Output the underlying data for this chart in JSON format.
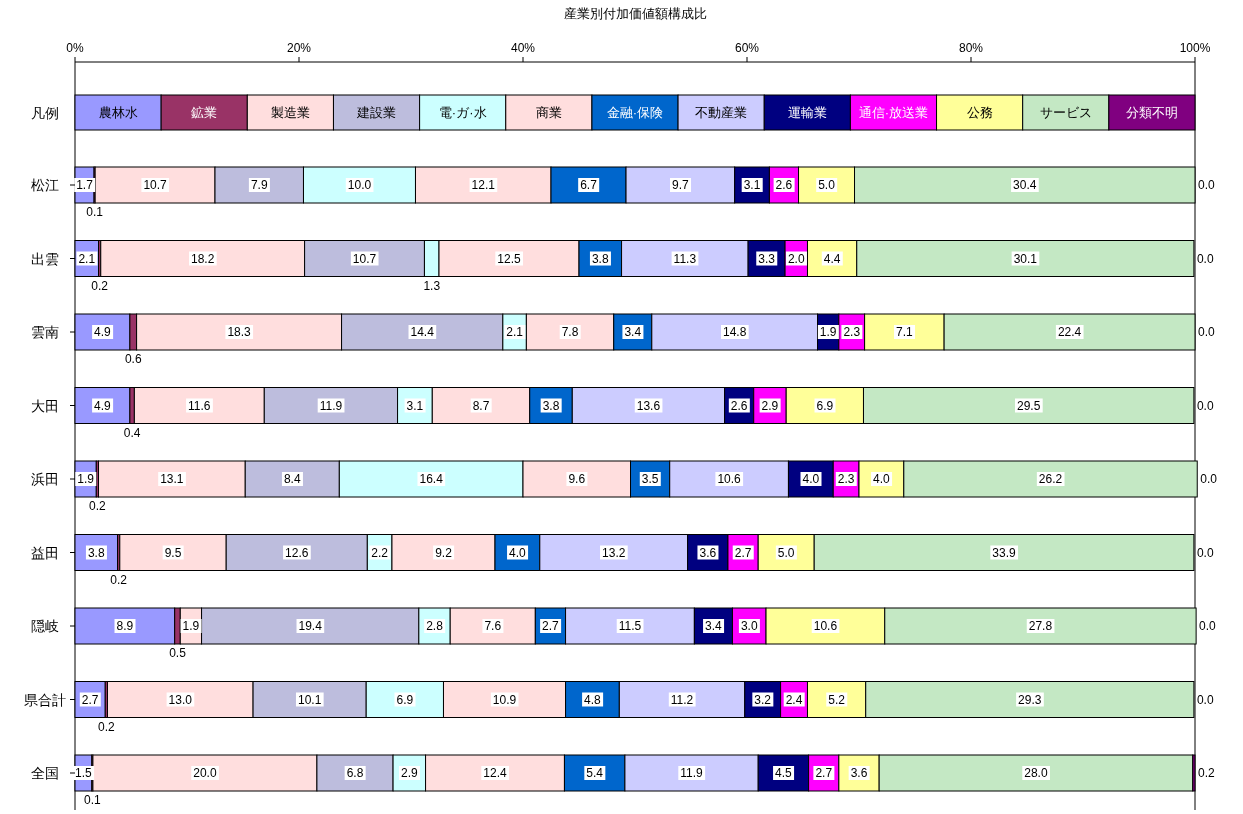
{
  "chart_data": {
    "type": "bar",
    "orientation": "horizontal",
    "stacked": true,
    "legend": "top",
    "legend_title": "凡例",
    "title": "産業別付加価値額構成比",
    "categories": [
      "松江",
      "出雲",
      "雲南",
      "大田",
      "浜田",
      "益田",
      "隠岐",
      "県合計",
      "全国"
    ],
    "xlim": [
      0,
      100
    ],
    "xticks": [
      {
        "value": 0,
        "label": "0%"
      },
      {
        "value": 20,
        "label": "20%"
      },
      {
        "value": 40,
        "label": "40%"
      },
      {
        "value": 60,
        "label": "60%"
      },
      {
        "value": 80,
        "label": "80%"
      },
      {
        "value": 100,
        "label": "100%"
      }
    ],
    "series": [
      {
        "name": "農林水",
        "color": "#9999ff",
        "values": [
          1.7,
          2.1,
          4.9,
          4.9,
          1.9,
          3.8,
          8.9,
          2.7,
          1.5
        ],
        "value_labels": [
          "1.7",
          "2.1",
          "4.9",
          "4.9",
          "1.9",
          "3.8",
          "8.9",
          "2.7",
          "1.5"
        ]
      },
      {
        "name": "鉱業",
        "color": "#993366",
        "values": [
          0.1,
          0.2,
          0.6,
          0.4,
          0.2,
          0.2,
          0.5,
          0.2,
          0.1
        ],
        "value_labels": [
          "0.1",
          "0.2",
          "0.6",
          "0.4",
          "0.2",
          "0.2",
          "0.5",
          "0.2",
          "0.1"
        ]
      },
      {
        "name": "製造業",
        "color": "#ffdede",
        "values": [
          10.7,
          18.2,
          18.3,
          11.6,
          13.1,
          9.5,
          1.9,
          13.0,
          20.0
        ],
        "value_labels": [
          "10.7",
          "18.2",
          "18.3",
          "11.6",
          "13.1",
          "9.5",
          "1.9",
          "13.0",
          "20.0"
        ]
      },
      {
        "name": "建設業",
        "color": "#bdbddd",
        "values": [
          7.9,
          10.7,
          14.4,
          11.9,
          8.4,
          12.6,
          19.4,
          10.1,
          6.8
        ],
        "value_labels": [
          "7.9",
          "10.7",
          "14.4",
          "11.9",
          "8.4",
          "12.6",
          "19.4",
          "10.1",
          "6.8"
        ]
      },
      {
        "name": "電·ガ·水",
        "color": "#ccffff",
        "values": [
          10.0,
          1.3,
          2.1,
          3.1,
          16.4,
          2.2,
          2.8,
          6.9,
          2.9
        ],
        "value_labels": [
          "10.0",
          "1.3",
          "2.1",
          "3.1",
          "16.4",
          "2.2",
          "2.8",
          "6.9",
          "2.9"
        ]
      },
      {
        "name": "商業",
        "color": "#ffdede",
        "values": [
          12.1,
          12.5,
          7.8,
          8.7,
          9.6,
          9.2,
          7.6,
          10.9,
          12.4
        ],
        "value_labels": [
          "12.1",
          "12.5",
          "7.8",
          "8.7",
          "9.6",
          "9.2",
          "7.6",
          "10.9",
          "12.4"
        ]
      },
      {
        "name": "金融·保険",
        "color": "#0066cc",
        "values": [
          6.7,
          3.8,
          3.4,
          3.8,
          3.5,
          4.0,
          2.7,
          4.8,
          5.4
        ],
        "value_labels": [
          "6.7",
          "3.8",
          "3.4",
          "3.8",
          "3.5",
          "4.0",
          "2.7",
          "4.8",
          "5.4"
        ]
      },
      {
        "name": "不動産業",
        "color": "#ccccff",
        "values": [
          9.7,
          11.3,
          14.8,
          13.6,
          10.6,
          13.2,
          11.5,
          11.2,
          11.9
        ],
        "value_labels": [
          "9.7",
          "11.3",
          "14.8",
          "13.6",
          "10.6",
          "13.2",
          "11.5",
          "11.2",
          "11.9"
        ]
      },
      {
        "name": "運輸業",
        "color": "#000080",
        "values": [
          3.1,
          3.3,
          1.9,
          2.6,
          4.0,
          3.6,
          3.4,
          3.2,
          4.5
        ],
        "value_labels": [
          "3.1",
          "3.3",
          "1.9",
          "2.6",
          "4.0",
          "3.6",
          "3.4",
          "3.2",
          "4.5"
        ]
      },
      {
        "name": "通信·放送業",
        "color": "#ff00ff",
        "values": [
          2.6,
          2.0,
          2.3,
          2.9,
          2.3,
          2.7,
          3.0,
          2.4,
          2.7
        ],
        "value_labels": [
          "2.6",
          "2.0",
          "2.3",
          "2.9",
          "2.3",
          "2.7",
          "3.0",
          "2.4",
          "2.7"
        ]
      },
      {
        "name": "公務",
        "color": "#ffff99",
        "values": [
          5.0,
          4.4,
          7.1,
          6.9,
          4.0,
          5.0,
          10.6,
          5.2,
          3.6
        ],
        "value_labels": [
          "5.0",
          "4.4",
          "7.1",
          "6.9",
          "4.0",
          "5.0",
          "10.6",
          "5.2",
          "3.6"
        ]
      },
      {
        "name": "サービス",
        "color": "#c4e8c4",
        "values": [
          30.4,
          30.1,
          22.4,
          29.5,
          26.2,
          33.9,
          27.8,
          29.3,
          28.0
        ],
        "value_labels": [
          "30.4",
          "30.1",
          "22.4",
          "29.5",
          "26.2",
          "33.9",
          "27.8",
          "29.3",
          "28.0"
        ]
      },
      {
        "name": "分類不明",
        "color": "#800080",
        "values": [
          0.0,
          0.0,
          0.0,
          0.0,
          0.0,
          0.0,
          0.0,
          0.0,
          0.2
        ],
        "value_labels": [
          "0.0",
          "0.0",
          "0.0",
          "0.0",
          "0.0",
          "0.0",
          "0.0",
          "0.0",
          "0.2"
        ]
      }
    ]
  }
}
